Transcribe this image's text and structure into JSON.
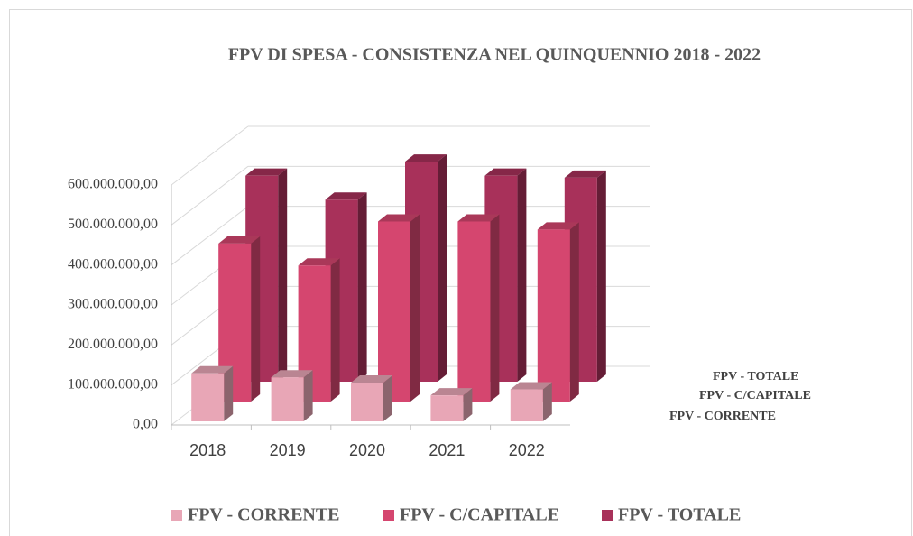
{
  "chart_data": {
    "type": "bar3d",
    "title": "FPV DI SPESA - CONSISTENZA NEL QUINQUENNIO 2018 - 2022",
    "categories": [
      "2018",
      "2019",
      "2020",
      "2021",
      "2022"
    ],
    "series": [
      {
        "name": "FPV - CORRENTE",
        "color": "#e8a6b6",
        "values": [
          120000000,
          110000000,
          97000000,
          65000000,
          80000000
        ]
      },
      {
        "name": "FPV - C/CAPITALE",
        "color": "#d5466f",
        "values": [
          395000000,
          340000000,
          450000000,
          450000000,
          430000000
        ]
      },
      {
        "name": "FPV - TOTALE",
        "color": "#a8315a",
        "values": [
          515000000,
          455000000,
          550000000,
          515000000,
          510000000
        ]
      }
    ],
    "ylim": [
      0,
      600000000
    ],
    "yticks": [
      {
        "value": 0,
        "label": "0,00"
      },
      {
        "value": 100000000,
        "label": "100.000.000,00"
      },
      {
        "value": 200000000,
        "label": "200.000.000,00"
      },
      {
        "value": 300000000,
        "label": "300.000.000,00"
      },
      {
        "value": 400000000,
        "label": "400.000.000,00"
      },
      {
        "value": 500000000,
        "label": "500.000.000,00"
      },
      {
        "value": 600000000,
        "label": "600.000.000,00"
      }
    ],
    "grid": true,
    "legend": "bottom"
  }
}
